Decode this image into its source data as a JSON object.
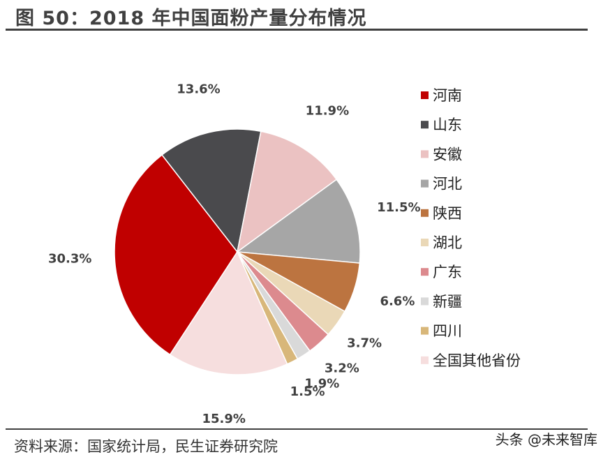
{
  "header": {
    "title": "图 50：2018 年中国面粉产量分布情况"
  },
  "footer": {
    "source": "资料来源：国家统计局，民生证券研究院",
    "watermark": "头条 @未来智库"
  },
  "chart_data": {
    "type": "pie",
    "unit": "%",
    "slices": [
      {
        "name": "河南",
        "value": 30.3,
        "label": "30.3%",
        "color": "#C00000"
      },
      {
        "name": "山东",
        "value": 13.6,
        "label": "13.6%",
        "color": "#4A4A4D"
      },
      {
        "name": "安徽",
        "value": 11.9,
        "label": "11.9%",
        "color": "#EBC2C2"
      },
      {
        "name": "河北",
        "value": 11.5,
        "label": "11.5%",
        "color": "#A6A6A6"
      },
      {
        "name": "陕西",
        "value": 6.6,
        "label": "6.6%",
        "color": "#BC7440"
      },
      {
        "name": "湖北",
        "value": 3.7,
        "label": "3.7%",
        "color": "#EAD8B7"
      },
      {
        "name": "广东",
        "value": 3.2,
        "label": "3.2%",
        "color": "#DC8A8E"
      },
      {
        "name": "新疆",
        "value": 1.9,
        "label": "1.9%",
        "color": "#D9D9D9"
      },
      {
        "name": "四川",
        "value": 1.5,
        "label": "1.5%",
        "color": "#D8B77A"
      },
      {
        "name": "全国其他省份",
        "value": 15.9,
        "label": "15.9%",
        "color": "#F6DEDE"
      }
    ],
    "legend_position": "right"
  }
}
